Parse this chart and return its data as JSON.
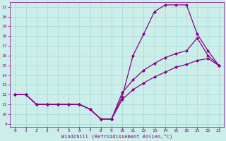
{
  "xlabel": "Windchill (Refroidissement éolien,°C)",
  "bg_color": "#cceee8",
  "line_color": "#880088",
  "grid_color": "#aadddd",
  "line1_x": [
    0,
    1,
    2,
    3,
    4,
    5,
    6,
    7,
    8,
    9,
    10,
    11,
    12,
    13,
    14,
    15,
    16,
    21,
    22,
    23
  ],
  "line1_y": [
    12,
    12,
    11,
    11,
    11,
    11,
    11,
    10.5,
    9.5,
    9.5,
    11.8,
    16.0,
    18.2,
    20.5,
    21.2,
    21.2,
    21.2,
    18.2,
    16.5,
    15.0
  ],
  "line2_x": [
    0,
    1,
    2,
    3,
    4,
    5,
    6,
    7,
    8,
    9,
    10,
    11,
    12,
    13,
    14,
    15,
    16,
    21,
    22,
    23
  ],
  "line2_y": [
    12,
    12,
    11,
    11,
    11,
    11,
    11,
    10.5,
    9.5,
    9.5,
    12.2,
    13.5,
    14.5,
    15.2,
    15.8,
    16.2,
    16.5,
    17.8,
    16.0,
    15.0
  ],
  "line3_x": [
    0,
    1,
    2,
    3,
    4,
    5,
    6,
    7,
    8,
    9,
    10,
    11,
    12,
    13,
    14,
    15,
    16,
    21,
    22,
    23
  ],
  "line3_y": [
    12,
    12,
    11,
    11,
    11,
    11,
    11,
    10.5,
    9.5,
    9.5,
    11.5,
    12.5,
    13.2,
    13.8,
    14.3,
    14.8,
    15.1,
    15.5,
    15.7,
    15.0
  ],
  "xlim_positions": [
    0,
    1,
    2,
    3,
    4,
    5,
    6,
    7,
    8,
    9,
    10,
    11,
    12,
    13,
    14,
    15,
    16,
    17,
    18,
    19
  ],
  "xlabels": [
    "0",
    "1",
    "2",
    "3",
    "4",
    "5",
    "6",
    "7",
    "8",
    "9",
    "10",
    "11",
    "12",
    "13",
    "14",
    "15",
    "16",
    "21",
    "22",
    "23"
  ],
  "real_x": [
    0,
    1,
    2,
    3,
    4,
    5,
    6,
    7,
    8,
    9,
    10,
    11,
    12,
    13,
    14,
    15,
    16,
    21,
    22,
    23
  ],
  "yticks": [
    9,
    10,
    11,
    12,
    13,
    14,
    15,
    16,
    17,
    18,
    19,
    20,
    21
  ],
  "ylim": [
    8.7,
    21.5
  ],
  "marker": "D",
  "markersize": 2.5,
  "linewidth": 0.9
}
